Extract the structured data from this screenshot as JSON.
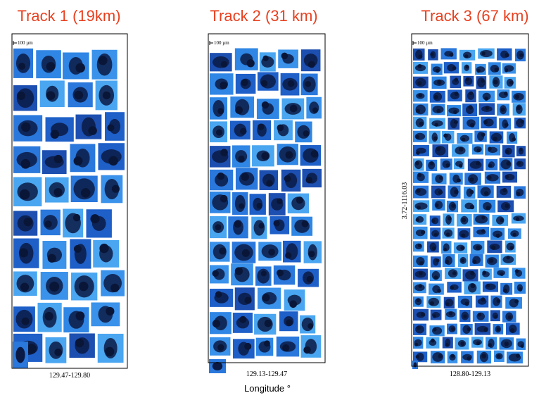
{
  "panels": [
    {
      "title": "Track 1 (19km)",
      "scale": "100 µm",
      "range": "129.47-129.80"
    },
    {
      "title": "Track 2 (31 km)",
      "scale": "100 µm",
      "range": "129.13-129.47"
    },
    {
      "title": "Track 3 (67 km)",
      "scale": "100 µm",
      "range": "128.80-129.13",
      "side_label": "3.72-1116.03"
    }
  ],
  "footer": {
    "axis_label": "Longitude °"
  }
}
